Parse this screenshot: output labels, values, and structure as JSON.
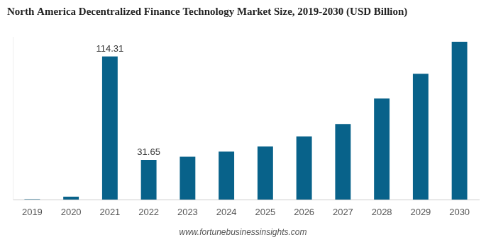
{
  "chart_data": {
    "type": "bar",
    "title": "North America Decentralized Finance Technology Market Size, 2019-2030 (USD Billion)",
    "source": "www.fortunebusinessinsights.com",
    "categories": [
      "2019",
      "2020",
      "2021",
      "2022",
      "2023",
      "2024",
      "2025",
      "2026",
      "2027",
      "2028",
      "2029",
      "2030"
    ],
    "values": [
      0.3,
      2.3,
      114.31,
      31.65,
      34.2,
      38.3,
      42.4,
      50.5,
      60.4,
      80.7,
      100.4,
      126
    ],
    "value_labels": [
      null,
      null,
      "114.31",
      "31.65",
      null,
      null,
      null,
      null,
      null,
      null,
      null,
      null
    ],
    "data_labels": true,
    "color": "#08628a",
    "ylim": [
      0,
      130
    ],
    "tick_labels": "x",
    "grid": false
  }
}
